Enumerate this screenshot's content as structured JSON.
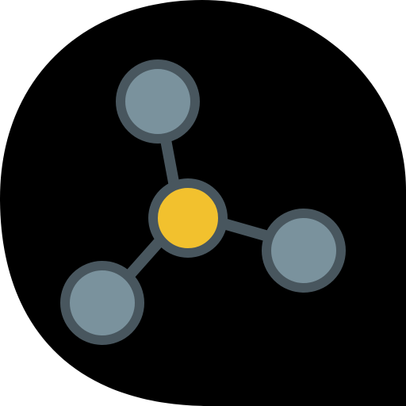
{
  "icon": {
    "name": "molecule-network-icon",
    "description_role": "app icon",
    "colors": {
      "page_background": "#ffffff",
      "blob_background": "#000000",
      "connector": "#48565e",
      "node_outline": "#48565e",
      "outer_node_fill": "#7a929d",
      "center_node_fill": "#f2c12e"
    }
  }
}
